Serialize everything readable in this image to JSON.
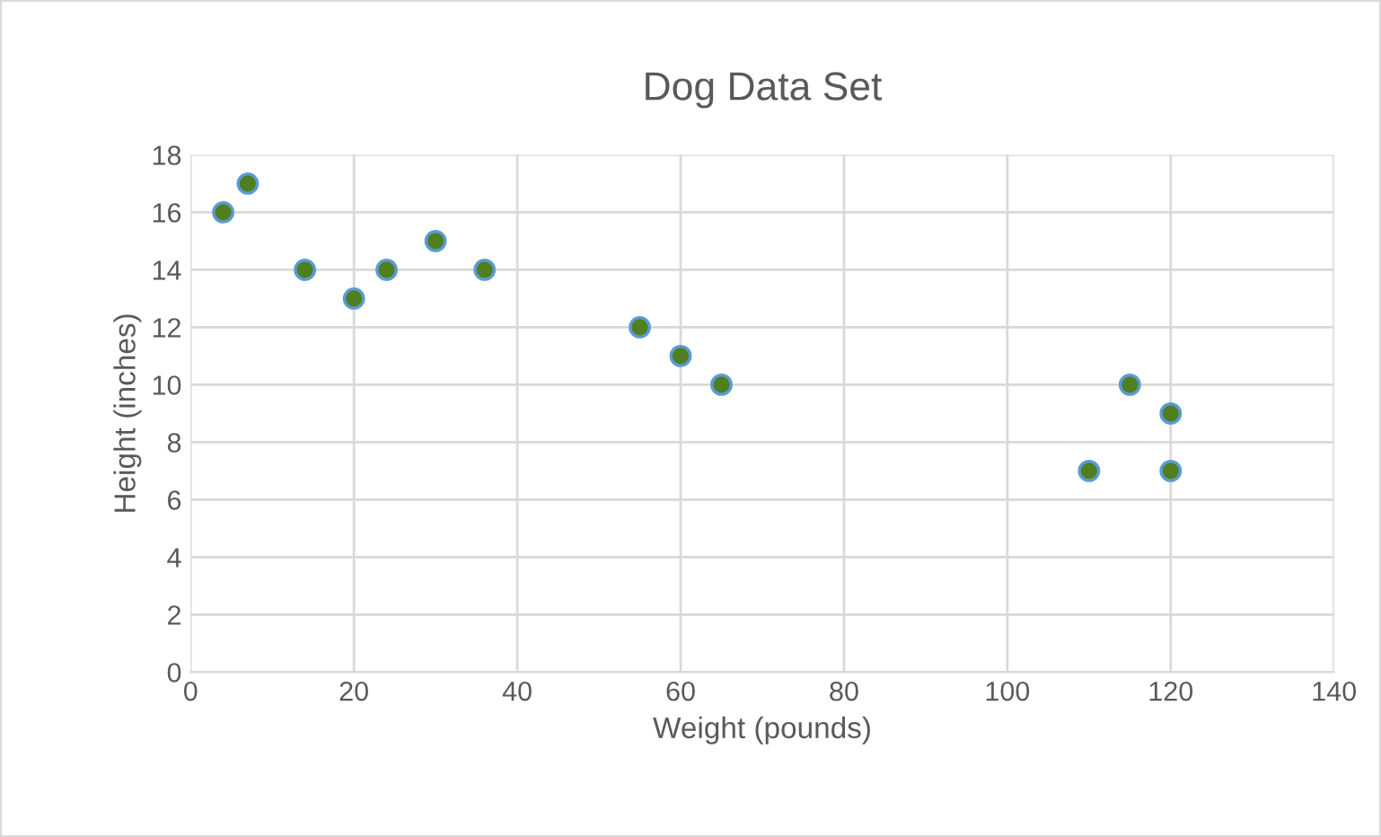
{
  "chart_data": {
    "type": "scatter",
    "title": "Dog Data Set",
    "xlabel": "Weight (pounds)",
    "ylabel": "Height (inches)",
    "x": [
      4,
      7,
      14,
      20,
      24,
      30,
      36,
      55,
      60,
      65,
      110,
      115,
      120,
      120
    ],
    "values": [
      16,
      17,
      14,
      13,
      14,
      15,
      14,
      12,
      11,
      10,
      7,
      10,
      9,
      7
    ],
    "color": "#4f7f1f",
    "marker": "circle",
    "xlim": [
      0,
      140
    ],
    "xticks": [
      0,
      20,
      40,
      60,
      80,
      100,
      120,
      140
    ],
    "ylim": [
      0,
      18
    ],
    "yticks": [
      0,
      2,
      4,
      6,
      8,
      10,
      12,
      14,
      16,
      18
    ],
    "grid": true
  }
}
